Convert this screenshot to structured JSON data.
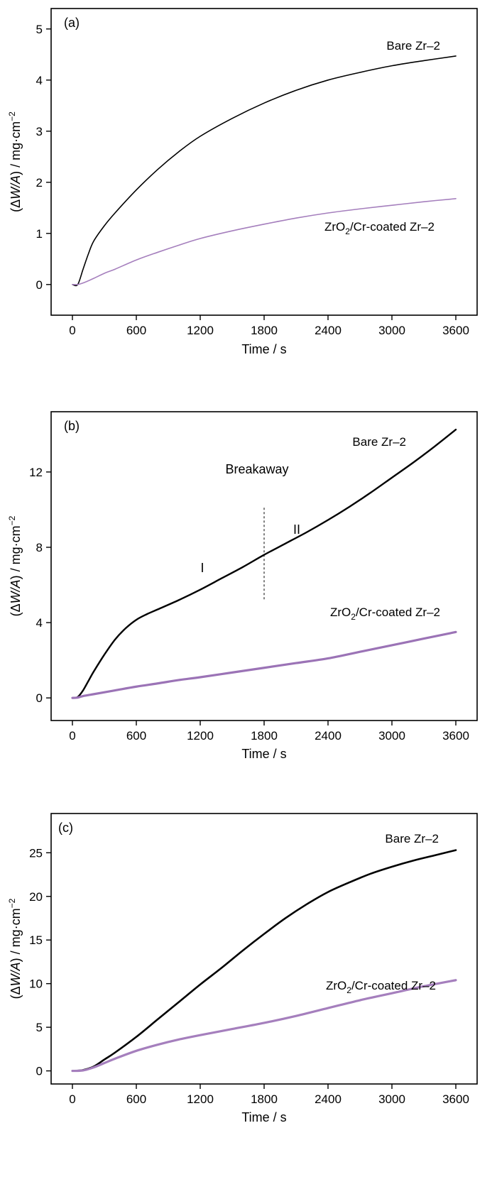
{
  "chart_data": [
    {
      "type": "line",
      "panel_label": "(a)",
      "xlabel": "Time / s",
      "ylabel_parts": {
        "open": "(",
        "delta": "Δ",
        "var": "W/A",
        "close": ") / mg·cm",
        "exp": "−2"
      },
      "xlim": [
        -200,
        3800
      ],
      "ylim": [
        -0.6,
        5.4
      ],
      "xticks": [
        0,
        600,
        1200,
        1800,
        2400,
        3000,
        3600
      ],
      "yticks": [
        0,
        1,
        2,
        3,
        4,
        5
      ],
      "series": [
        {
          "name": "Bare Zr–2",
          "color": "#000000",
          "width": 1.6,
          "x": [
            0,
            50,
            100,
            150,
            200,
            300,
            400,
            600,
            800,
            1000,
            1200,
            1500,
            1800,
            2100,
            2400,
            2700,
            3000,
            3300,
            3600
          ],
          "y": [
            0,
            0,
            0.3,
            0.6,
            0.85,
            1.15,
            1.4,
            1.85,
            2.25,
            2.6,
            2.9,
            3.25,
            3.55,
            3.8,
            4.0,
            4.15,
            4.28,
            4.38,
            4.47
          ]
        },
        {
          "name_parts": {
            "pre": "ZrO",
            "sub": "2",
            "post": "/Cr-coated Zr–2"
          },
          "color": "#a57fbd",
          "width": 1.6,
          "x": [
            0,
            50,
            100,
            200,
            300,
            400,
            600,
            800,
            1000,
            1200,
            1500,
            1800,
            2100,
            2400,
            2700,
            3000,
            3300,
            3600
          ],
          "y": [
            0,
            0,
            0.03,
            0.12,
            0.22,
            0.3,
            0.48,
            0.63,
            0.77,
            0.9,
            1.05,
            1.18,
            1.3,
            1.4,
            1.48,
            1.55,
            1.62,
            1.68
          ]
        }
      ]
    },
    {
      "type": "line",
      "panel_label": "(b)",
      "xlabel": "Time / s",
      "ylabel_parts": {
        "open": "(",
        "delta": "Δ",
        "var": "W/A",
        "close": ") / mg·cm",
        "exp": "−2"
      },
      "xlim": [
        -200,
        3800
      ],
      "ylim": [
        -1.2,
        15.2
      ],
      "xticks": [
        0,
        600,
        1200,
        1800,
        2400,
        3000,
        3600
      ],
      "yticks": [
        0,
        4,
        8,
        12
      ],
      "annotations": {
        "breakaway": "Breakaway",
        "stage1": "I",
        "stage2": "II",
        "breakaway_x": 1800,
        "breakaway_y": [
          5.2,
          10.1
        ]
      },
      "series": [
        {
          "name": "Bare Zr–2",
          "color": "#000000",
          "width": 2.4,
          "x": [
            0,
            50,
            100,
            150,
            200,
            300,
            400,
            500,
            600,
            700,
            800,
            1000,
            1200,
            1400,
            1600,
            1800,
            2000,
            2200,
            2400,
            2600,
            2800,
            3000,
            3200,
            3400,
            3600
          ],
          "y": [
            0,
            0.05,
            0.4,
            0.9,
            1.4,
            2.3,
            3.1,
            3.7,
            4.15,
            4.45,
            4.7,
            5.2,
            5.75,
            6.35,
            6.95,
            7.6,
            8.2,
            8.8,
            9.45,
            10.15,
            10.9,
            11.7,
            12.5,
            13.35,
            14.25
          ]
        },
        {
          "name_parts": {
            "pre": "ZrO",
            "sub": "2",
            "post": "/Cr-coated Zr–2"
          },
          "color": "#9b73b6",
          "width": 3.2,
          "x": [
            0,
            50,
            100,
            200,
            400,
            600,
            800,
            1000,
            1200,
            1500,
            1800,
            2100,
            2400,
            2700,
            3000,
            3300,
            3600
          ],
          "y": [
            0,
            0.02,
            0.1,
            0.2,
            0.4,
            0.6,
            0.77,
            0.95,
            1.1,
            1.35,
            1.6,
            1.85,
            2.1,
            2.45,
            2.8,
            3.15,
            3.5
          ]
        }
      ]
    },
    {
      "type": "line",
      "panel_label": "(c)",
      "xlabel": "Time / s",
      "ylabel_parts": {
        "open": "(",
        "delta": "Δ",
        "var": "W/A",
        "close": ") / mg·cm",
        "exp": "−2"
      },
      "xlim": [
        -200,
        3800
      ],
      "ylim": [
        -1.5,
        29.5
      ],
      "xticks": [
        0,
        600,
        1200,
        1800,
        2400,
        3000,
        3600
      ],
      "yticks": [
        0,
        5,
        10,
        15,
        20,
        25
      ],
      "series": [
        {
          "name": "Bare Zr–2",
          "color": "#000000",
          "width": 2.6,
          "x": [
            0,
            100,
            200,
            300,
            400,
            600,
            800,
            1000,
            1200,
            1400,
            1600,
            1800,
            2000,
            2200,
            2400,
            2600,
            2800,
            3000,
            3200,
            3400,
            3600
          ],
          "y": [
            0,
            0.1,
            0.5,
            1.3,
            2.1,
            3.9,
            5.9,
            7.9,
            9.9,
            11.8,
            13.8,
            15.7,
            17.5,
            19.1,
            20.5,
            21.6,
            22.6,
            23.4,
            24.1,
            24.7,
            25.3
          ]
        },
        {
          "name_parts": {
            "pre": "ZrO",
            "sub": "2",
            "post": "/Cr-coated Zr–2"
          },
          "color": "#a57fbd",
          "width": 3.2,
          "x": [
            0,
            100,
            200,
            300,
            400,
            600,
            800,
            1000,
            1200,
            1500,
            1800,
            2100,
            2400,
            2700,
            3000,
            3300,
            3600
          ],
          "y": [
            0,
            0.05,
            0.4,
            0.9,
            1.4,
            2.3,
            3.0,
            3.6,
            4.1,
            4.8,
            5.5,
            6.3,
            7.2,
            8.1,
            8.9,
            9.7,
            10.4
          ]
        }
      ]
    }
  ]
}
